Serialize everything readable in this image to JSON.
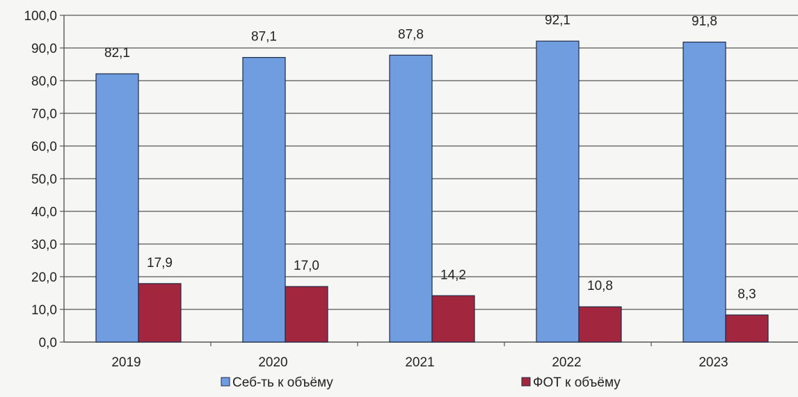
{
  "chart_data": {
    "type": "bar",
    "title": "",
    "xlabel": "",
    "ylabel": "",
    "categories": [
      "2019",
      "2020",
      "2021",
      "2022",
      "2023"
    ],
    "series": [
      {
        "name": "Себ-ть к объёму",
        "values": [
          82.1,
          87.1,
          87.8,
          92.1,
          91.8
        ],
        "color": "#6f9de0",
        "labels": [
          "82,1",
          "87,1",
          "87,8",
          "92,1",
          "91,8"
        ]
      },
      {
        "name": "ФОТ к объёму",
        "values": [
          17.9,
          17.0,
          14.2,
          10.8,
          8.3
        ],
        "color": "#a3263f",
        "labels": [
          "17,9",
          "17,0",
          "14,2",
          "10,8",
          "8,3"
        ]
      }
    ],
    "ylim": [
      0,
      100
    ],
    "yticks": [
      0,
      10,
      20,
      30,
      40,
      50,
      60,
      70,
      80,
      90,
      100
    ],
    "ytick_labels": [
      "0,0",
      "10,0",
      "20,0",
      "30,0",
      "40,0",
      "50,0",
      "60,0",
      "70,0",
      "80,0",
      "90,0",
      "100,0"
    ],
    "grid": true,
    "legend": "bottom"
  }
}
